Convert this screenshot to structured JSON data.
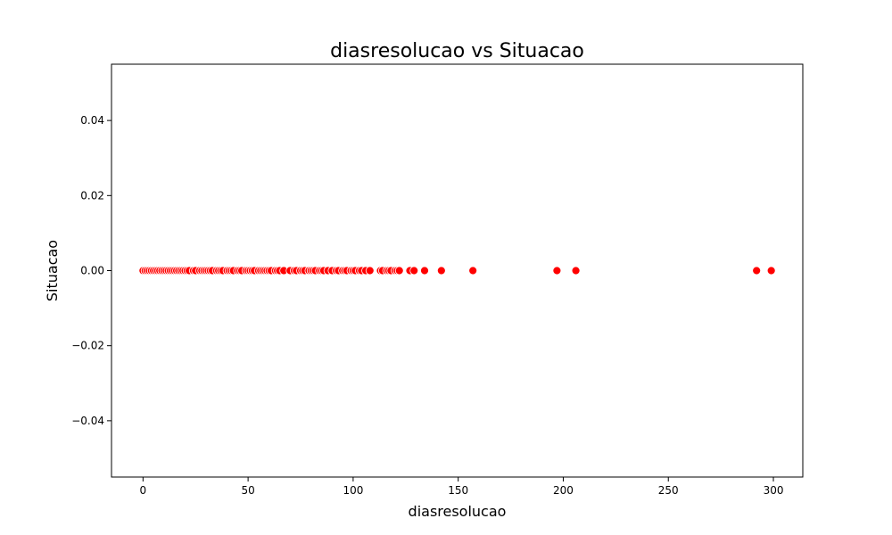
{
  "chart_data": {
    "type": "scatter",
    "title": "diasresolucao vs Situacao",
    "xlabel": "diasresolucao",
    "ylabel": "Situacao",
    "xlim": [
      -15,
      314
    ],
    "ylim": [
      -0.055,
      0.055
    ],
    "xticks": [
      0,
      50,
      100,
      150,
      200,
      250,
      300
    ],
    "xtick_labels": [
      "0",
      "50",
      "100",
      "150",
      "200",
      "250",
      "300"
    ],
    "yticks": [
      -0.04,
      -0.02,
      0.0,
      0.02,
      0.04
    ],
    "ytick_labels": [
      "−0.04",
      "−0.02",
      "0.00",
      "0.02",
      "0.04"
    ],
    "grid": false,
    "marker_color": "#ff0000",
    "marker_edge_color": "#ffffff",
    "series": [
      {
        "x": [
          0,
          1,
          2,
          3,
          4,
          5,
          6,
          7,
          8,
          9,
          10,
          11,
          12,
          13,
          14,
          15,
          16,
          17,
          18,
          19,
          20,
          21,
          22,
          24,
          25,
          27,
          28,
          29,
          30,
          31,
          32,
          33,
          35,
          36,
          37,
          38,
          40,
          41,
          42,
          43,
          45,
          46,
          47,
          49,
          50,
          51,
          52,
          53,
          55,
          56,
          57,
          58,
          59,
          60,
          61,
          63,
          64,
          65,
          67,
          70,
          72,
          73,
          75,
          76,
          77,
          79,
          80,
          81,
          82,
          84,
          85,
          86,
          88,
          90,
          92,
          93,
          95,
          96,
          97,
          99,
          100,
          101,
          103,
          104,
          106,
          108,
          113,
          114,
          116,
          117,
          118,
          120,
          121,
          122,
          127,
          129,
          134,
          142,
          157,
          197,
          206,
          292,
          299
        ],
        "y": [
          0,
          0,
          0,
          0,
          0,
          0,
          0,
          0,
          0,
          0,
          0,
          0,
          0,
          0,
          0,
          0,
          0,
          0,
          0,
          0,
          0,
          0,
          0,
          0,
          0,
          0,
          0,
          0,
          0,
          0,
          0,
          0,
          0,
          0,
          0,
          0,
          0,
          0,
          0,
          0,
          0,
          0,
          0,
          0,
          0,
          0,
          0,
          0,
          0,
          0,
          0,
          0,
          0,
          0,
          0,
          0,
          0,
          0,
          0,
          0,
          0,
          0,
          0,
          0,
          0,
          0,
          0,
          0,
          0,
          0,
          0,
          0,
          0,
          0,
          0,
          0,
          0,
          0,
          0,
          0,
          0,
          0,
          0,
          0,
          0,
          0,
          0,
          0,
          0,
          0,
          0,
          0,
          0,
          0,
          0,
          0,
          0,
          0,
          0,
          0,
          0,
          0,
          0
        ]
      }
    ]
  }
}
